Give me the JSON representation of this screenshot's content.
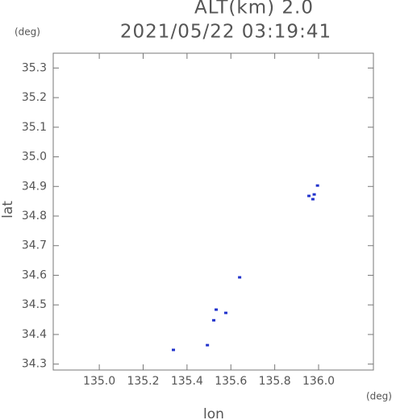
{
  "chart_data": {
    "type": "scatter",
    "title": "2021/05/22 03:19:41",
    "annotation": "ALT(km) 2.0",
    "y_unit": "(deg)",
    "x_unit": "(deg)",
    "x_label": "lon",
    "y_label": "lat",
    "xlim": [
      134.79,
      136.25
    ],
    "ylim": [
      34.28,
      35.35
    ],
    "xticks": [
      {
        "value": 135,
        "label": "135.0"
      },
      135.2,
      135.4,
      135.6,
      135.8,
      {
        "value": 136,
        "label": "136.0"
      }
    ],
    "yticks": [
      34.3,
      34.4,
      34.5,
      34.6,
      34.7,
      34.8,
      34.9,
      {
        "value": 35,
        "label": "35.0"
      },
      35.1,
      35.2,
      35.3
    ],
    "series": [
      {
        "name": "points",
        "color": "#2233cc",
        "x": [
          135.995,
          135.98,
          135.956,
          135.974,
          135.64,
          135.533,
          135.577,
          135.522,
          135.493,
          135.338
        ],
        "values": [
          34.903,
          34.873,
          34.868,
          34.857,
          34.593,
          34.484,
          34.473,
          34.448,
          34.364,
          34.348
        ]
      }
    ]
  }
}
